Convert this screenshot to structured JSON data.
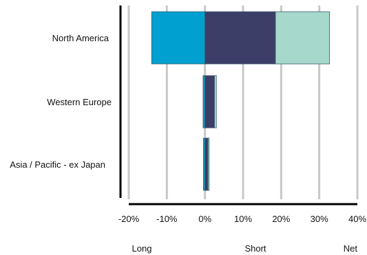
{
  "chart_data": {
    "type": "bar",
    "orientation": "horizontal",
    "stacked": true,
    "categories": [
      "North America",
      "Western Europe",
      "Asia / Pacific - ex Japan"
    ],
    "series": [
      {
        "name": "Long",
        "values": [
          -14,
          -0.5,
          -0.4
        ],
        "color": "#00A0D0"
      },
      {
        "name": "Short",
        "values": [
          18.5,
          2.5,
          0.8
        ],
        "color": "#3D3E68"
      },
      {
        "name": "Net",
        "values": [
          14.2,
          0.5,
          0.3
        ],
        "color": "#A6D8CB"
      }
    ],
    "xlim": [
      -20,
      40
    ],
    "xticks": [
      -20,
      -10,
      0,
      10,
      20,
      30,
      40
    ],
    "xtick_labels": [
      "-20%",
      "-10%",
      "0%",
      "10%",
      "20%",
      "30%",
      "40%"
    ],
    "grid": true,
    "legend_position": "bottom"
  }
}
